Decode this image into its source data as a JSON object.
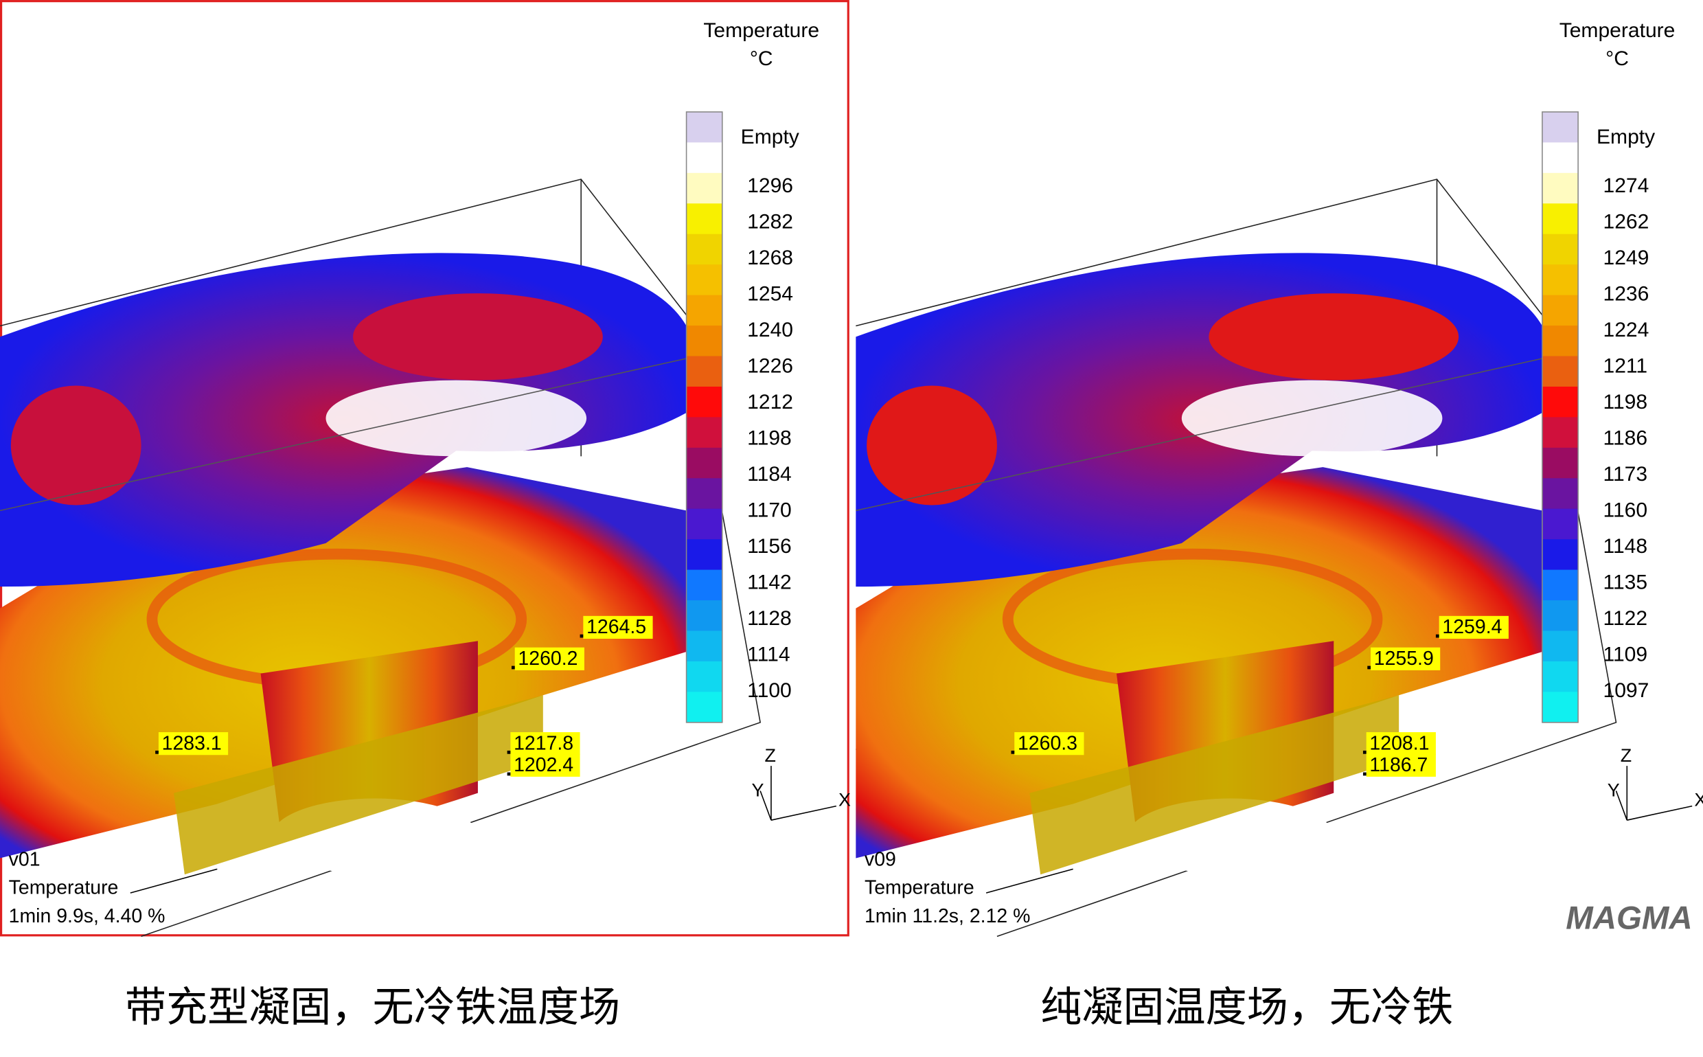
{
  "panels": [
    {
      "legend_title": "Temperature",
      "legend_unit": "°C",
      "legend_labels": [
        "Empty",
        "1296",
        "1282",
        "1268",
        "1254",
        "1240",
        "1226",
        "1212",
        "1198",
        "1184",
        "1170",
        "1156",
        "1142",
        "1128",
        "1114",
        "1100"
      ],
      "probes": [
        "1264.5",
        "1260.2",
        "1283.1",
        "1217.8",
        "1202.4"
      ],
      "axes": [
        "Z",
        "Y",
        "X"
      ],
      "info": [
        "v01",
        "Temperature",
        "1min 9.9s, 4.40 %"
      ],
      "caption": "带充型凝固，无冷铁温度场"
    },
    {
      "legend_title": "Temperature",
      "legend_unit": "°C",
      "legend_labels": [
        "Empty",
        "1274",
        "1262",
        "1249",
        "1236",
        "1224",
        "1211",
        "1198",
        "1186",
        "1173",
        "1160",
        "1148",
        "1135",
        "1122",
        "1109",
        "1097"
      ],
      "probes": [
        "1259.4",
        "1255.9",
        "1260.3",
        "1208.1",
        "1186.7"
      ],
      "axes": [
        "Z",
        "Y",
        "X"
      ],
      "info": [
        "v09",
        "Temperature",
        "1min 11.2s, 2.12 %"
      ],
      "caption": "纯凝固温度场，无冷铁"
    }
  ],
  "logo": "MAGMA"
}
